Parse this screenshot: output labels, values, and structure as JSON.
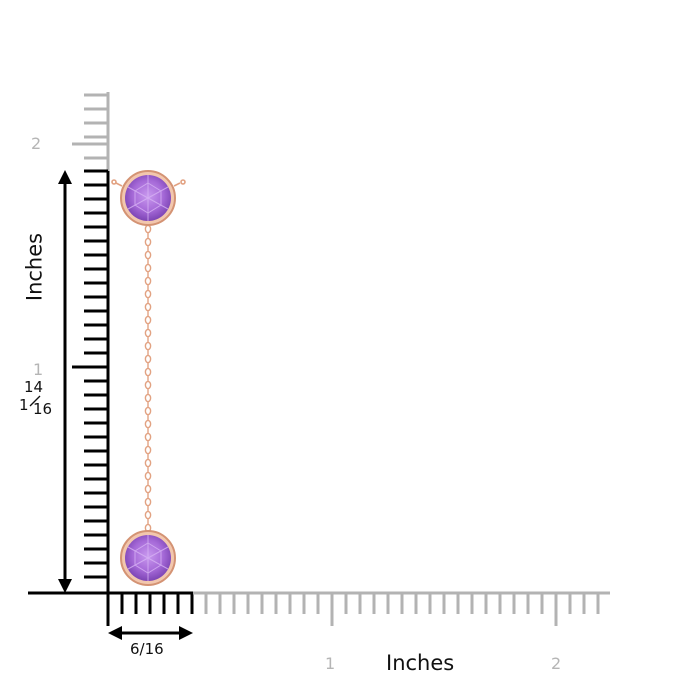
{
  "colors": {
    "ruler_gray": "#b3b3b3",
    "ruler_black": "#000000",
    "rose_gold": "#e2a282",
    "amethyst": "#a76fd8",
    "amethyst_dark": "#7e45b6",
    "amethyst_light": "#cfa6f0"
  },
  "vertical_ruler": {
    "title": "Inches",
    "tick_labels": [
      "2",
      "1"
    ],
    "measurement": {
      "whole": "1",
      "numerator": "14",
      "denominator": "16"
    }
  },
  "horizontal_ruler": {
    "title": "Inches",
    "tick_labels": [
      "1",
      "2"
    ],
    "measurement": "6/16"
  },
  "product": {
    "stones": [
      "amethyst-bezel-stone",
      "amethyst-bezel-stone"
    ],
    "chain": "rose-gold-cable-chain"
  }
}
